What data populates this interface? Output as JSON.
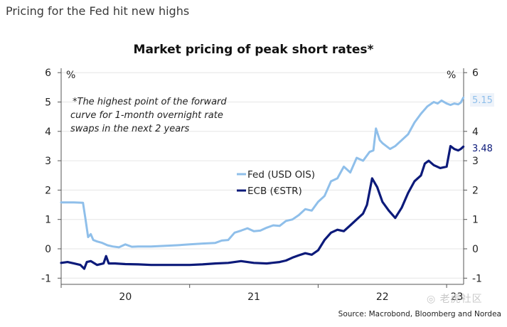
{
  "headline": "Pricing for the Fed hit new highs",
  "watermark": "◎ 老虎社区",
  "chart_data": {
    "type": "line",
    "title": "Market pricing of peak short rates*",
    "annotation": [
      "*The highest point of the forward",
      "curve for 1-month overnight rate",
      "swaps in the next 2 years"
    ],
    "xlabel": "",
    "ylabel": "%",
    "y_unit_left": "%",
    "y_unit_right": "%",
    "ylim": [
      -1.2,
      6.2
    ],
    "yticks": [
      -1,
      0,
      1,
      2,
      3,
      4,
      5,
      6
    ],
    "yticks_right": [
      -1,
      0,
      1,
      2,
      3,
      4,
      6
    ],
    "xlim": [
      2020.0,
      2023.15
    ],
    "xticks": [
      2020,
      2021,
      2022,
      2023
    ],
    "xtick_labels": [
      {
        "label": "20",
        "at": 2020.5
      },
      {
        "label": "21",
        "at": 2021.5
      },
      {
        "label": "22",
        "at": 2022.5
      },
      {
        "label": "23",
        "at": 2023.08
      }
    ],
    "grid": true,
    "legend_position": "center-left",
    "series": [
      {
        "name": "Fed (USD OIS)",
        "color": "#8fbfea",
        "end_label": "5.15",
        "x": [
          2020.0,
          2020.1,
          2020.17,
          2020.19,
          2020.21,
          2020.23,
          2020.25,
          2020.28,
          2020.32,
          2020.36,
          2020.4,
          2020.45,
          2020.5,
          2020.55,
          2020.6,
          2020.7,
          2020.8,
          2020.9,
          2021.0,
          2021.1,
          2021.2,
          2021.25,
          2021.3,
          2021.35,
          2021.4,
          2021.45,
          2021.5,
          2021.55,
          2021.6,
          2021.65,
          2021.7,
          2021.75,
          2021.8,
          2021.85,
          2021.9,
          2021.95,
          2022.0,
          2022.05,
          2022.1,
          2022.15,
          2022.2,
          2022.25,
          2022.3,
          2022.35,
          2022.4,
          2022.43,
          2022.45,
          2022.48,
          2022.5,
          2022.53,
          2022.56,
          2022.6,
          2022.65,
          2022.7,
          2022.75,
          2022.8,
          2022.85,
          2022.9,
          2022.93,
          2022.96,
          2023.0,
          2023.03,
          2023.06,
          2023.09,
          2023.11,
          2023.13
        ],
        "values": [
          1.58,
          1.58,
          1.57,
          1.0,
          0.4,
          0.5,
          0.3,
          0.25,
          0.2,
          0.12,
          0.08,
          0.05,
          0.15,
          0.07,
          0.08,
          0.08,
          0.1,
          0.12,
          0.15,
          0.18,
          0.2,
          0.28,
          0.3,
          0.55,
          0.62,
          0.7,
          0.6,
          0.62,
          0.72,
          0.8,
          0.78,
          0.95,
          1.0,
          1.15,
          1.35,
          1.3,
          1.6,
          1.8,
          2.3,
          2.4,
          2.8,
          2.6,
          3.1,
          3.0,
          3.3,
          3.35,
          4.1,
          3.7,
          3.6,
          3.5,
          3.4,
          3.5,
          3.7,
          3.9,
          4.3,
          4.6,
          4.85,
          5.0,
          4.95,
          5.05,
          4.95,
          4.9,
          4.95,
          4.92,
          4.98,
          5.15
        ]
      },
      {
        "name": "ECB (€STR)",
        "color": "#0c1a7a",
        "end_label": "3.48",
        "x": [
          2020.0,
          2020.05,
          2020.1,
          2020.15,
          2020.18,
          2020.2,
          2020.23,
          2020.28,
          2020.33,
          2020.35,
          2020.37,
          2020.42,
          2020.5,
          2020.6,
          2020.7,
          2020.8,
          2020.9,
          2021.0,
          2021.1,
          2021.2,
          2021.3,
          2021.4,
          2021.5,
          2021.6,
          2021.7,
          2021.75,
          2021.8,
          2021.85,
          2021.9,
          2021.95,
          2022.0,
          2022.05,
          2022.1,
          2022.15,
          2022.2,
          2022.25,
          2022.3,
          2022.35,
          2022.38,
          2022.42,
          2022.46,
          2022.5,
          2022.55,
          2022.6,
          2022.65,
          2022.7,
          2022.75,
          2022.8,
          2022.83,
          2022.86,
          2022.9,
          2022.95,
          2023.0,
          2023.03,
          2023.06,
          2023.09,
          2023.11,
          2023.13
        ],
        "values": [
          -0.48,
          -0.45,
          -0.5,
          -0.55,
          -0.68,
          -0.45,
          -0.42,
          -0.55,
          -0.5,
          -0.25,
          -0.5,
          -0.5,
          -0.52,
          -0.53,
          -0.55,
          -0.55,
          -0.55,
          -0.55,
          -0.53,
          -0.5,
          -0.48,
          -0.42,
          -0.48,
          -0.5,
          -0.45,
          -0.4,
          -0.3,
          -0.22,
          -0.15,
          -0.2,
          -0.05,
          0.3,
          0.55,
          0.65,
          0.6,
          0.8,
          1.0,
          1.2,
          1.5,
          2.4,
          2.1,
          1.6,
          1.3,
          1.05,
          1.4,
          1.9,
          2.3,
          2.5,
          2.9,
          3.0,
          2.85,
          2.75,
          2.8,
          3.5,
          3.4,
          3.35,
          3.4,
          3.48
        ]
      }
    ]
  },
  "source": "Source: Macrobond, Bloomberg and Nordea"
}
